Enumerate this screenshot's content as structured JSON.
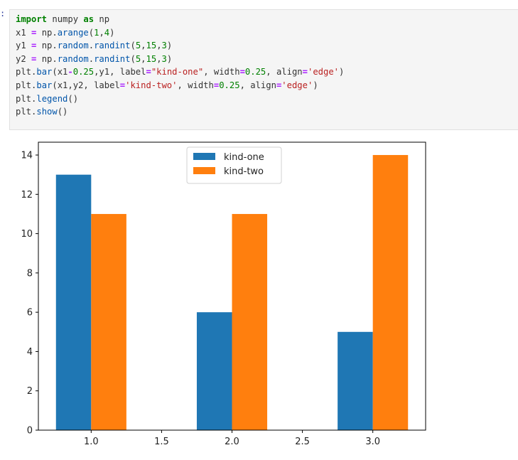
{
  "cell": {
    "prompt": ":",
    "code_lines": [
      "import numpy as np",
      "x1 = np.arange(1,4)",
      "y1 = np.random.randint(5,15,3)",
      "y2 = np.random.randint(5,15,3)",
      "plt.bar(x1-0.25,y1, label=\"kind-one\", width=0.25, align='edge')",
      "plt.bar(x1,y2, label='kind-two', width=0.25, align='edge')",
      "plt.legend()",
      "plt.show()"
    ]
  },
  "chart_data": {
    "type": "bar",
    "title": "",
    "xlabel": "",
    "ylabel": "",
    "x_ticks": [
      "1.0",
      "1.5",
      "2.0",
      "2.5",
      "3.0"
    ],
    "y_ticks": [
      "0",
      "2",
      "4",
      "6",
      "8",
      "10",
      "12",
      "14"
    ],
    "xlim": [
      0.625,
      3.375
    ],
    "ylim": [
      0,
      14.7
    ],
    "legend_position": "upper center",
    "grid": false,
    "categories": [
      1,
      2,
      3
    ],
    "series": [
      {
        "name": "kind-one",
        "color": "#1f77b4",
        "x_left": [
          0.75,
          1.75,
          2.75
        ],
        "width": 0.25,
        "values": [
          13,
          6,
          5
        ]
      },
      {
        "name": "kind-two",
        "color": "#ff7f0e",
        "x_left": [
          1.0,
          2.0,
          3.0
        ],
        "width": 0.25,
        "values": [
          11,
          11,
          14
        ]
      }
    ]
  }
}
